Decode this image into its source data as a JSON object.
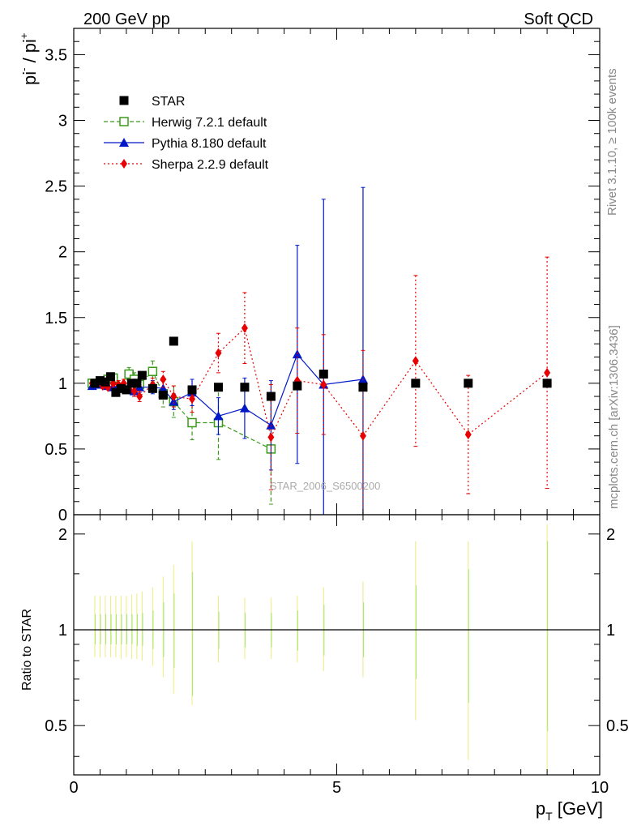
{
  "header": {
    "left": "200 GeV pp",
    "right": "Soft QCD",
    "side_rivet": "Rivet 3.1.10, ≥ 100k events",
    "side_mcplots": "mcplots.cern.ch [arXiv:1306.3436]",
    "watermark": "STAR_2006_S6500200"
  },
  "colors": {
    "star": "#000000",
    "herwig": "#3a9a1a",
    "pythia": "#0018c8",
    "sherpa": "#e80000",
    "ratio_band_yellow": "#ecec80",
    "ratio_band_green": "#a8e878"
  },
  "chart_data": [
    {
      "type": "scatter",
      "title": "",
      "ylabel_base": "pi",
      "ylabel_sup1": "-",
      "ylabel_sep": " / pi",
      "ylabel_sup2": "+",
      "xlim": [
        0,
        10
      ],
      "ylim": [
        0,
        3.7
      ],
      "x_ticks": [
        0,
        5,
        10
      ],
      "y_ticks": [
        0,
        0.5,
        1,
        1.5,
        2,
        2.5,
        3,
        3.5
      ],
      "y_tick_labels": [
        "0",
        "0.5",
        "1",
        "1.5",
        "2",
        "2.5",
        "3",
        "3.5"
      ],
      "legend": {
        "position": "top-left",
        "entries": [
          "STAR",
          "Herwig 7.2.1 default",
          "Pythia 8.180 default",
          "Sherpa 2.2.9 default"
        ]
      },
      "series": [
        {
          "name": "STAR",
          "marker": "square-filled",
          "x": [
            0.4,
            0.5,
            0.6,
            0.7,
            0.8,
            0.9,
            1.0,
            1.1,
            1.2,
            1.3,
            1.5,
            1.7,
            1.9,
            2.25,
            2.75,
            3.25,
            3.75,
            4.25,
            4.75,
            5.5,
            6.5,
            7.5,
            9.0
          ],
          "y": [
            1.0,
            1.02,
            1.01,
            1.05,
            0.93,
            0.96,
            0.95,
            1.0,
            1.0,
            1.06,
            0.96,
            0.91,
            1.32,
            0.95,
            0.97,
            0.97,
            0.9,
            0.98,
            1.07,
            0.97,
            1.0,
            1.0,
            1.0
          ]
        },
        {
          "name": "Herwig 7.2.1 default",
          "marker": "square-open",
          "line": "dashed",
          "x": [
            0.35,
            0.45,
            0.55,
            0.65,
            0.75,
            0.85,
            0.95,
            1.05,
            1.15,
            1.25,
            1.5,
            1.7,
            1.9,
            2.25,
            2.75,
            3.75
          ],
          "y": [
            1.0,
            1.0,
            1.01,
            1.03,
            1.04,
            0.97,
            0.97,
            1.07,
            1.03,
            0.99,
            1.09,
            0.92,
            0.86,
            0.7,
            0.7,
            0.5
          ],
          "err": [
            0.03,
            0.03,
            0.03,
            0.03,
            0.03,
            0.03,
            0.04,
            0.05,
            0.05,
            0.05,
            0.08,
            0.1,
            0.12,
            0.13,
            0.28,
            0.42
          ]
        },
        {
          "name": "Pythia 8.180 default",
          "marker": "triangle-filled",
          "line": "solid",
          "x": [
            0.35,
            0.45,
            0.55,
            0.65,
            0.75,
            0.85,
            0.95,
            1.05,
            1.15,
            1.25,
            1.5,
            1.7,
            1.9,
            2.25,
            2.75,
            3.25,
            3.75,
            4.25,
            4.75,
            5.5
          ],
          "y": [
            0.98,
            0.99,
            0.99,
            0.98,
            0.97,
            0.98,
            0.97,
            0.96,
            0.94,
            0.97,
            0.97,
            0.96,
            0.86,
            0.93,
            0.75,
            0.81,
            0.68,
            1.22,
            0.99,
            1.03
          ],
          "err": [
            0.02,
            0.02,
            0.02,
            0.02,
            0.02,
            0.02,
            0.03,
            0.03,
            0.04,
            0.04,
            0.05,
            0.06,
            0.06,
            0.1,
            0.14,
            0.23,
            0.34,
            0.83,
            1.41,
            1.46
          ]
        },
        {
          "name": "Sherpa 2.2.9 default",
          "marker": "diamond-filled",
          "line": "dotted",
          "x": [
            0.35,
            0.45,
            0.55,
            0.65,
            0.75,
            0.85,
            0.95,
            1.05,
            1.15,
            1.25,
            1.5,
            1.7,
            1.9,
            2.25,
            2.75,
            3.25,
            3.75,
            4.25,
            4.75,
            5.5,
            6.5,
            7.5,
            9.0
          ],
          "y": [
            1.0,
            1.0,
            0.98,
            0.97,
            1.0,
            0.99,
            1.0,
            0.96,
            0.94,
            0.9,
            0.99,
            1.03,
            0.9,
            0.88,
            1.23,
            1.42,
            0.59,
            1.02,
            0.99,
            0.6,
            1.17,
            0.61,
            1.08
          ],
          "err": [
            0.02,
            0.02,
            0.02,
            0.02,
            0.02,
            0.03,
            0.03,
            0.03,
            0.04,
            0.04,
            0.05,
            0.06,
            0.08,
            0.1,
            0.15,
            0.27,
            0.4,
            0.4,
            0.38,
            0.65,
            0.65,
            0.45,
            0.88
          ]
        }
      ]
    },
    {
      "type": "scatter",
      "ylabel": "Ratio to STAR",
      "xlabel_base": "p",
      "xlabel_sub": "T",
      "xlabel_unit": " [GeV]",
      "xlim": [
        0,
        10
      ],
      "ylim": [
        0.35,
        2.3
      ],
      "log_y": true,
      "x_ticks": [
        0,
        5,
        10
      ],
      "x_tick_labels": [
        "0",
        "5",
        "10"
      ],
      "y_ticks": [
        0.5,
        1,
        2
      ],
      "y_tick_labels": [
        "0.5",
        "1",
        "2"
      ],
      "bands": {
        "x": [
          0.4,
          0.5,
          0.6,
          0.7,
          0.8,
          0.9,
          1.0,
          1.1,
          1.2,
          1.3,
          1.5,
          1.7,
          1.9,
          2.25,
          2.75,
          3.25,
          3.75,
          4.25,
          4.75,
          5.5,
          6.5,
          7.5,
          9.0
        ],
        "yellow_lo": [
          0.82,
          0.82,
          0.82,
          0.82,
          0.82,
          0.81,
          0.82,
          0.81,
          0.81,
          0.8,
          0.77,
          0.71,
          0.63,
          0.58,
          0.79,
          0.81,
          0.81,
          0.79,
          0.74,
          0.71,
          0.52,
          0.39,
          0.36
        ],
        "yellow_hi": [
          1.28,
          1.28,
          1.28,
          1.28,
          1.28,
          1.28,
          1.28,
          1.29,
          1.3,
          1.32,
          1.36,
          1.47,
          1.6,
          1.9,
          1.28,
          1.26,
          1.26,
          1.28,
          1.36,
          1.42,
          1.9,
          1.9,
          2.15
        ],
        "green_lo": [
          0.9,
          0.9,
          0.9,
          0.9,
          0.9,
          0.9,
          0.9,
          0.9,
          0.89,
          0.89,
          0.87,
          0.82,
          0.76,
          0.62,
          0.87,
          0.88,
          0.88,
          0.86,
          0.83,
          0.82,
          0.7,
          0.59,
          0.48
        ],
        "green_hi": [
          1.12,
          1.12,
          1.12,
          1.12,
          1.12,
          1.12,
          1.12,
          1.12,
          1.12,
          1.13,
          1.15,
          1.22,
          1.3,
          1.52,
          1.14,
          1.13,
          1.13,
          1.15,
          1.2,
          1.22,
          1.38,
          1.55,
          1.9
        ]
      },
      "reference_line": 1
    }
  ]
}
